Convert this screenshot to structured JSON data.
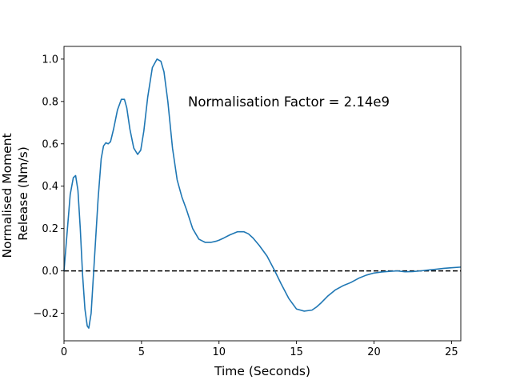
{
  "chart_data": {
    "type": "line",
    "title": "",
    "xlabel": "Time (Seconds)",
    "ylabel_lines": [
      "Normalised Moment",
      "Release (Nm/s)"
    ],
    "xlim": [
      0,
      25.6
    ],
    "ylim": [
      -0.33,
      1.06
    ],
    "xticks": [
      0,
      5,
      10,
      15,
      20,
      25
    ],
    "yticks": [
      -0.2,
      0.0,
      0.2,
      0.4,
      0.6,
      0.8,
      1.0
    ],
    "ytick_labels": [
      "−0.2",
      "0.0",
      "0.2",
      "0.4",
      "0.6",
      "0.8",
      "1.0"
    ],
    "grid": false,
    "annotation": {
      "text": "Normalisation Factor = 2.14e9",
      "x": 8.0,
      "y": 0.8
    },
    "reference_line": {
      "y": 0,
      "style": "dashed",
      "color": "#000000"
    },
    "series": [
      {
        "color": "#1f77b4",
        "x": [
          0,
          0.2,
          0.4,
          0.6,
          0.75,
          0.9,
          1.05,
          1.2,
          1.35,
          1.5,
          1.6,
          1.75,
          1.95,
          2.2,
          2.4,
          2.55,
          2.7,
          2.85,
          3.0,
          3.2,
          3.45,
          3.7,
          3.9,
          4.05,
          4.25,
          4.5,
          4.75,
          4.95,
          5.15,
          5.4,
          5.7,
          6.0,
          6.25,
          6.45,
          6.7,
          7.0,
          7.3,
          7.6,
          7.9,
          8.3,
          8.7,
          9.1,
          9.5,
          9.8,
          10.0,
          10.3,
          10.7,
          11.2,
          11.6,
          11.9,
          12.2,
          12.6,
          13.1,
          13.6,
          14.0,
          14.5,
          15.0,
          15.5,
          16.0,
          16.3,
          16.6,
          17.0,
          17.5,
          18.0,
          18.5,
          19.0,
          19.5,
          20.0,
          20.5,
          21.0,
          21.5,
          22.0,
          22.5,
          23.0,
          23.5,
          24.0,
          24.5,
          25.0,
          25.6
        ],
        "y": [
          0.0,
          0.18,
          0.36,
          0.44,
          0.45,
          0.38,
          0.2,
          -0.02,
          -0.18,
          -0.26,
          -0.27,
          -0.2,
          0.04,
          0.34,
          0.53,
          0.59,
          0.605,
          0.6,
          0.61,
          0.67,
          0.76,
          0.81,
          0.81,
          0.77,
          0.67,
          0.58,
          0.55,
          0.57,
          0.66,
          0.82,
          0.96,
          1.0,
          0.99,
          0.94,
          0.8,
          0.58,
          0.43,
          0.35,
          0.29,
          0.2,
          0.15,
          0.135,
          0.135,
          0.14,
          0.145,
          0.155,
          0.17,
          0.185,
          0.185,
          0.175,
          0.155,
          0.12,
          0.07,
          0.0,
          -0.06,
          -0.13,
          -0.18,
          -0.19,
          -0.185,
          -0.17,
          -0.15,
          -0.12,
          -0.09,
          -0.07,
          -0.055,
          -0.035,
          -0.02,
          -0.01,
          -0.005,
          -0.002,
          0.0,
          -0.004,
          -0.003,
          0.0,
          0.004,
          0.008,
          0.012,
          0.015,
          0.018
        ]
      }
    ]
  }
}
